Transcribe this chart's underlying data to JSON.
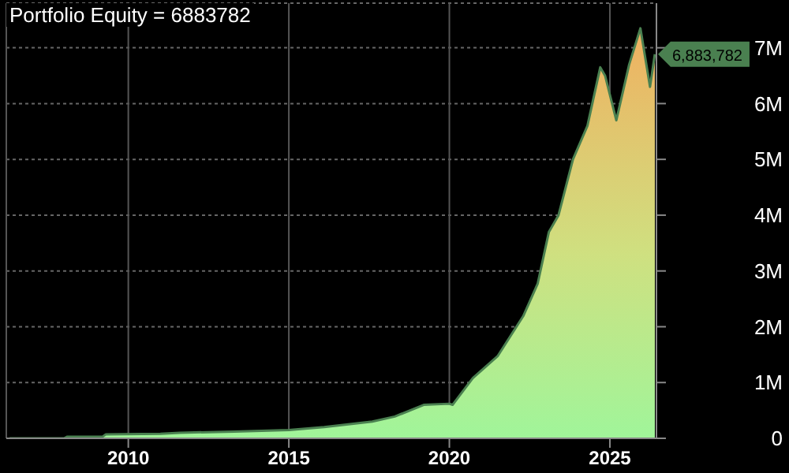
{
  "chart_data": {
    "type": "area",
    "title": "Portfolio Equity = 6883782",
    "x": [
      2006.3,
      2008.0,
      2008.1,
      2009.2,
      2009.3,
      2011.0,
      2011.6,
      2013.3,
      2015.0,
      2016.1,
      2017.6,
      2018.3,
      2019.2,
      2020.0,
      2020.1,
      2020.73,
      2021.5,
      2022.3,
      2022.75,
      2023.1,
      2023.4,
      2023.85,
      2024.3,
      2024.7,
      2024.85,
      2025.2,
      2025.6,
      2025.95,
      2026.25,
      2026.4
    ],
    "series": [
      {
        "color": "#4a8050",
        "values": [
          0,
          0,
          30000,
          30000,
          70000,
          80000,
          100000,
          120000,
          150000,
          200000,
          300000,
          390000,
          600000,
          620000,
          600000,
          1080000,
          1470000,
          2190000,
          2770000,
          3700000,
          4000000,
          5000000,
          5600000,
          6650000,
          6500000,
          5700000,
          6700000,
          7350000,
          6300000,
          6883782
        ]
      }
    ],
    "xlim": [
      2006.2,
      2026.45
    ],
    "xticks": [
      2010,
      2015,
      2020,
      2025
    ],
    "ylim": [
      0,
      7800000
    ],
    "yticks": [
      0,
      {
        "value": 1000000,
        "label": "1M"
      },
      {
        "value": 2000000,
        "label": "2M"
      },
      {
        "value": 3000000,
        "label": "3M"
      },
      {
        "value": 4000000,
        "label": "4M"
      },
      {
        "value": 5000000,
        "label": "5M"
      },
      {
        "value": 6000000,
        "label": "6M"
      },
      {
        "value": 7000000,
        "label": "7M"
      }
    ],
    "grid": true,
    "annotations": [
      {
        "text": "6,883,782",
        "x": 2026.4,
        "y": 6883782
      }
    ]
  }
}
